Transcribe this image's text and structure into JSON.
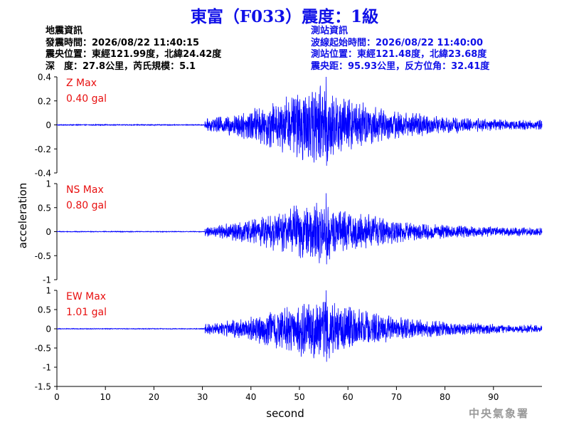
{
  "title": "東富（F033）震度：1級",
  "quake_info": {
    "heading": "地震資訊",
    "origin_time": "發震時間：2026/08/22 11:40:15",
    "epicenter": "震央位置：東經121.99度，北緯24.42度",
    "depth_magnitude": "深　度：27.8公里，芮氏規模：5.1"
  },
  "station_info": {
    "heading": "測站資訊",
    "waveform_start": "波線起始時間：2026/08/22 11:40:00",
    "station_location": "測站位置：東經121.48度，北緯23.68度",
    "distance_azimuth": "震央距：95.93公里，反方位角：32.41度"
  },
  "agency": "中央氣象署",
  "chart_data": {
    "type": "line",
    "xlabel": "second",
    "ylabel": "acceleration",
    "xlim": [
      0,
      100
    ],
    "xticks": [
      0,
      10,
      20,
      30,
      40,
      50,
      60,
      70,
      80,
      90
    ],
    "line_color": "#0000ff",
    "label_color": "#e81010",
    "onset_s": 30.5,
    "peak_s": 54,
    "panels": [
      {
        "name": "Z",
        "label": "Z Max",
        "max_text": "0.40 gal",
        "peak": 0.4,
        "ylim": [
          -0.4,
          0.4
        ],
        "yticks": [
          -0.4,
          -0.2,
          0,
          0.2,
          0.4
        ],
        "ytick_labels": [
          "-0.4",
          "-0.2",
          "0",
          "0.2",
          "0.4"
        ]
      },
      {
        "name": "NS",
        "label": "NS Max",
        "max_text": "0.80 gal",
        "peak": 0.8,
        "ylim": [
          -1,
          1
        ],
        "yticks": [
          -1,
          -0.5,
          0,
          0.5,
          1
        ],
        "ytick_labels": [
          "-1",
          "-0.5",
          "0",
          "0.5",
          "1"
        ]
      },
      {
        "name": "EW",
        "label": "EW Max",
        "max_text": "1.01 gal",
        "peak": 1.01,
        "ylim": [
          -1.5,
          1
        ],
        "yticks": [
          -1.5,
          -1,
          -0.5,
          0,
          0.5,
          1
        ],
        "ytick_labels": [
          "-1.5",
          "-1",
          "-0.5",
          "0",
          "0.5",
          "1"
        ]
      }
    ]
  }
}
